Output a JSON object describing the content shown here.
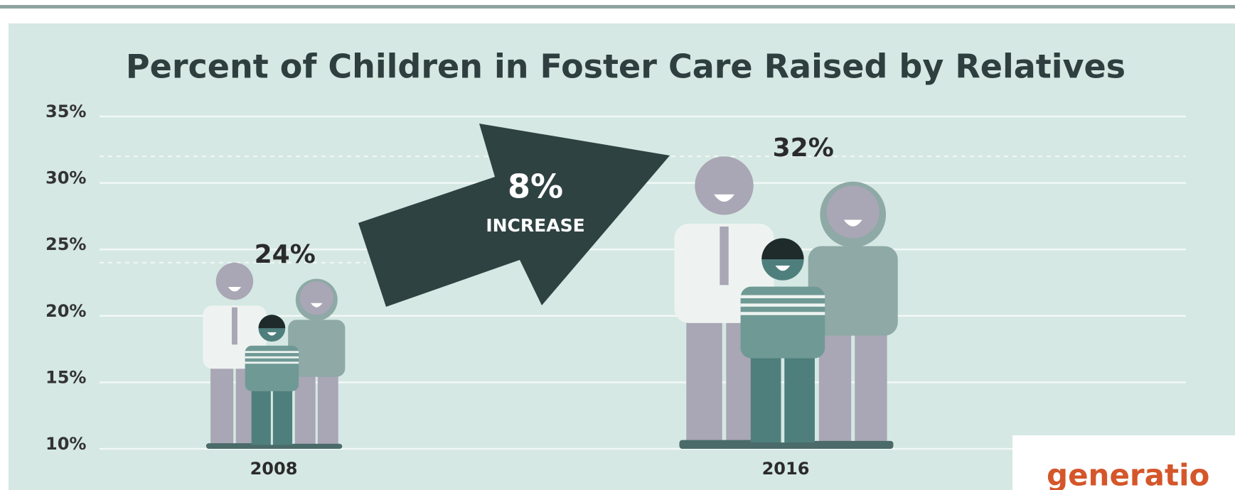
{
  "chart_data": {
    "type": "people",
    "title": "Percent of Children in Foster Care Raised by Relatives",
    "categories": [
      "2008",
      "2016"
    ],
    "values": [
      24,
      32
    ],
    "value_labels": [
      "24%",
      "32%"
    ],
    "ylim": [
      10,
      35
    ],
    "yticks": [
      {
        "value": 10,
        "label": "10%"
      },
      {
        "value": 15,
        "label": "15%"
      },
      {
        "value": 20,
        "label": "20%"
      },
      {
        "value": 25,
        "label": "25%"
      },
      {
        "value": 30,
        "label": "30%"
      },
      {
        "value": 35,
        "label": "35%"
      }
    ],
    "grid": true,
    "annotation": [
      "8%",
      "INCREASE"
    ],
    "logo": "generatio"
  }
}
